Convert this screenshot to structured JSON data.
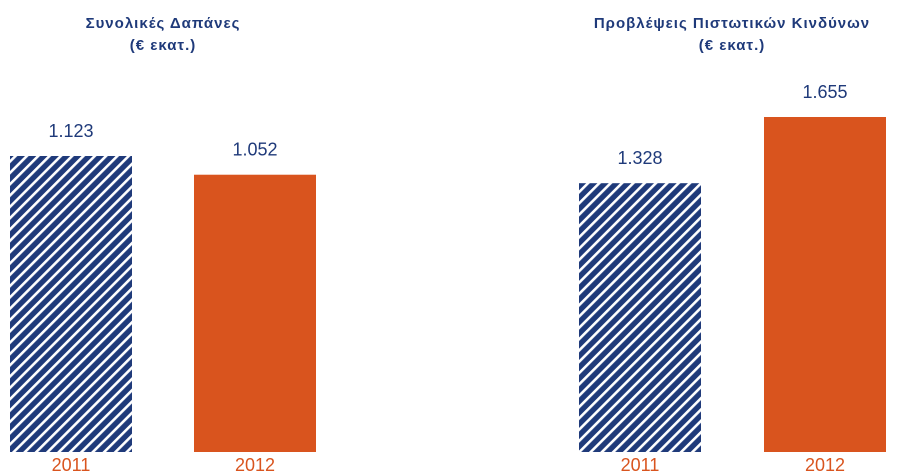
{
  "chart_data": [
    {
      "type": "bar",
      "title": [
        "Συνολικές Δαπάνες",
        "(€ εκατ.)"
      ],
      "categories": [
        "2011",
        "2012"
      ],
      "values": [
        1123,
        1052
      ],
      "value_labels": [
        "1.123",
        "1.052"
      ],
      "colors": [
        "#1f3a7a",
        "#d9541e"
      ],
      "patterns": [
        "hatch",
        "solid"
      ]
    },
    {
      "type": "bar",
      "title": [
        "Προβλέψεις Πιστωτικών Κινδύνων",
        "(€ εκατ.)"
      ],
      "categories": [
        "2011",
        "2012"
      ],
      "values": [
        1328,
        1655
      ],
      "value_labels": [
        "1.328",
        "1.655"
      ],
      "colors": [
        "#1f3a7a",
        "#d9541e"
      ],
      "patterns": [
        "hatch",
        "solid"
      ]
    }
  ]
}
